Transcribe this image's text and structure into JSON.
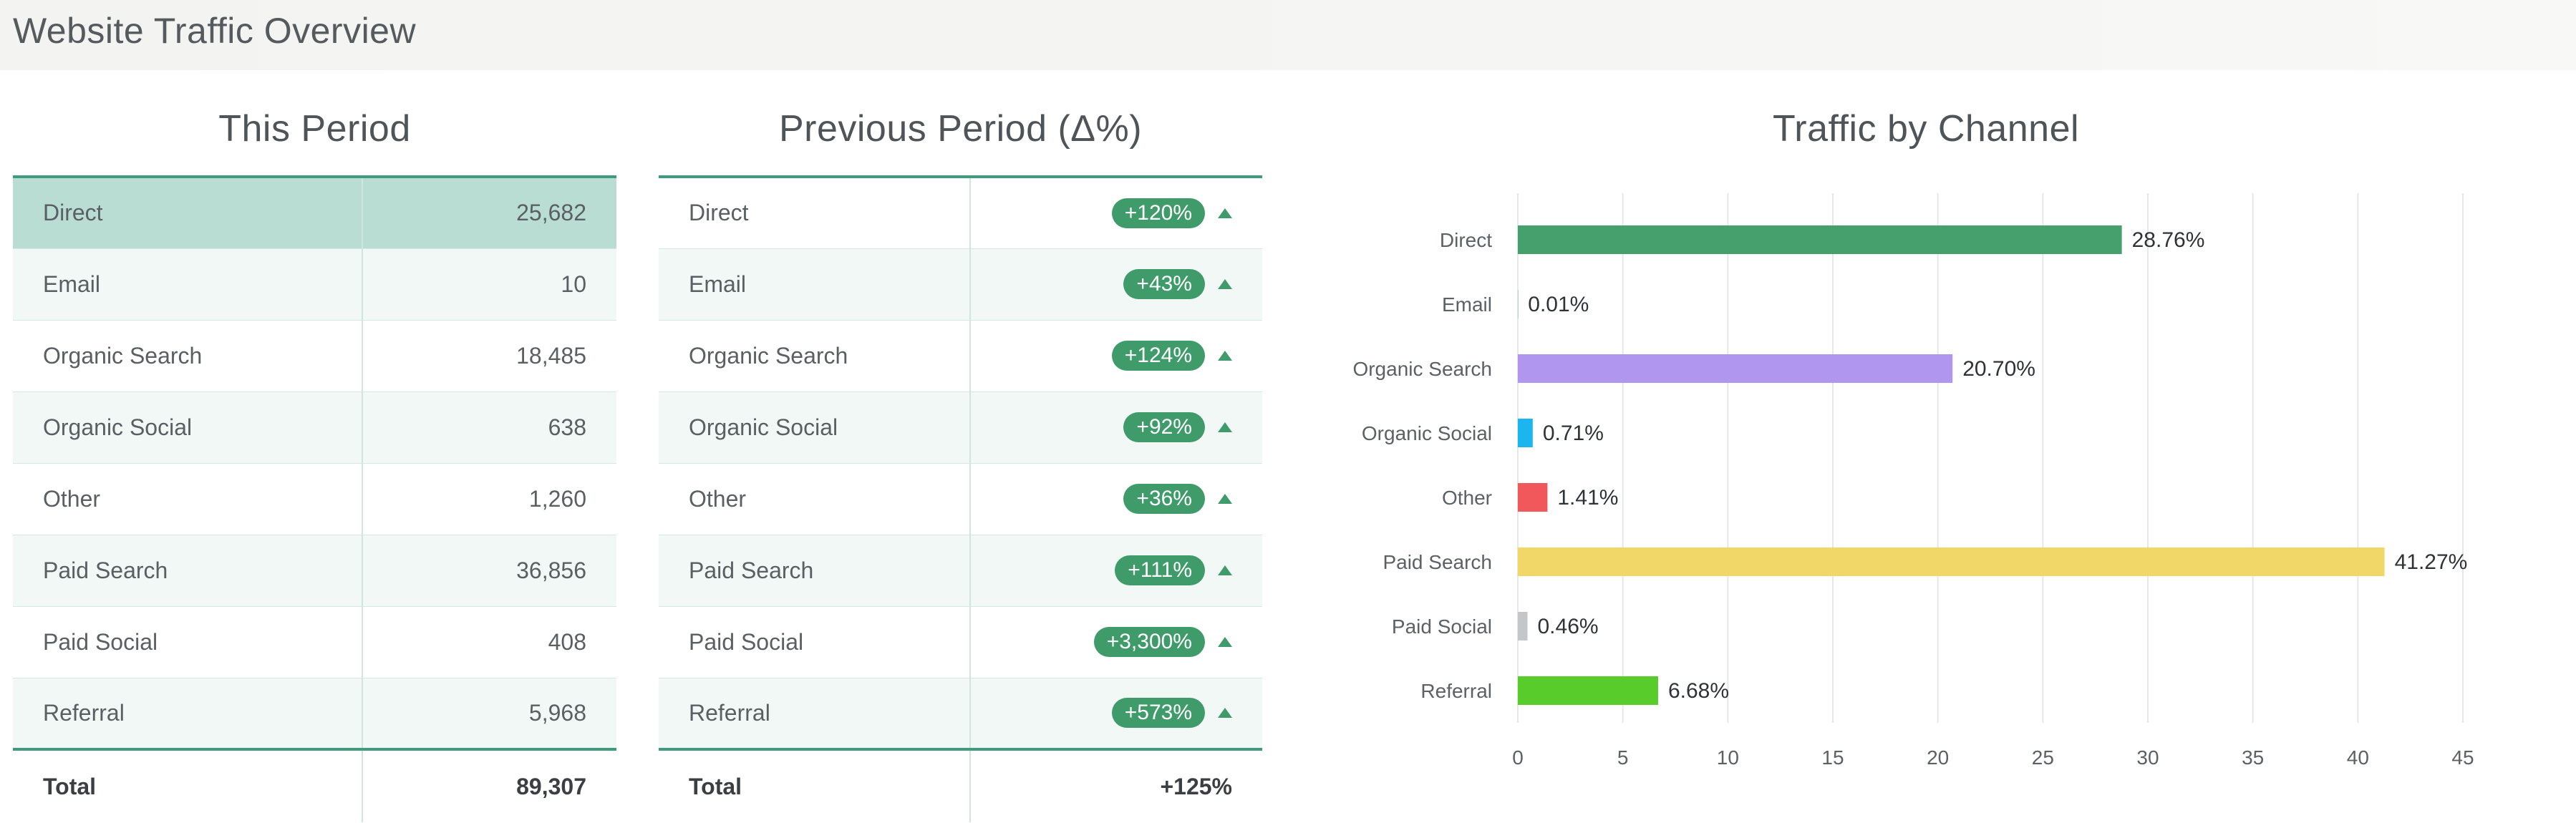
{
  "header": {
    "title": "Website Traffic Overview"
  },
  "this_period": {
    "title": "This Period",
    "rows": [
      {
        "label": "Direct",
        "value": "25,682"
      },
      {
        "label": "Email",
        "value": "10"
      },
      {
        "label": "Organic Search",
        "value": "18,485"
      },
      {
        "label": "Organic Social",
        "value": "638"
      },
      {
        "label": "Other",
        "value": "1,260"
      },
      {
        "label": "Paid Search",
        "value": "36,856"
      },
      {
        "label": "Paid Social",
        "value": "408"
      },
      {
        "label": "Referral",
        "value": "5,968"
      }
    ],
    "total_label": "Total",
    "total_value": "89,307"
  },
  "previous_period": {
    "title": "Previous Period (Δ%)",
    "rows": [
      {
        "label": "Direct",
        "delta": "+120%"
      },
      {
        "label": "Email",
        "delta": "+43%"
      },
      {
        "label": "Organic Search",
        "delta": "+124%"
      },
      {
        "label": "Organic Social",
        "delta": "+92%"
      },
      {
        "label": "Other",
        "delta": "+36%"
      },
      {
        "label": "Paid Search",
        "delta": "+111%"
      },
      {
        "label": "Paid Social",
        "delta": "+3,300%"
      },
      {
        "label": "Referral",
        "delta": "+573%"
      }
    ],
    "total_label": "Total",
    "total_delta": "+125%",
    "up_color": "#3f9b6a"
  },
  "chart_data": {
    "type": "bar",
    "orientation": "horizontal",
    "title": "Traffic by Channel",
    "categories": [
      "Direct",
      "Email",
      "Organic Search",
      "Organic Social",
      "Other",
      "Paid Search",
      "Paid Social",
      "Referral"
    ],
    "values": [
      28.76,
      0.01,
      20.7,
      0.71,
      1.41,
      41.27,
      0.46,
      6.68
    ],
    "data_labels": [
      "28.76%",
      "0.01%",
      "20.70%",
      "0.71%",
      "1.41%",
      "41.27%",
      "0.46%",
      "6.68%"
    ],
    "colors": [
      "#45a06d",
      "#45a06d",
      "#b196f0",
      "#1bb6f0",
      "#f0585c",
      "#f1d767",
      "#c4c6c9",
      "#58cc2b"
    ],
    "xlim": [
      0,
      45
    ],
    "xticks": [
      0,
      5,
      10,
      15,
      20,
      25,
      30,
      35,
      40,
      45
    ],
    "grid": true,
    "xlabel": "",
    "ylabel": ""
  }
}
